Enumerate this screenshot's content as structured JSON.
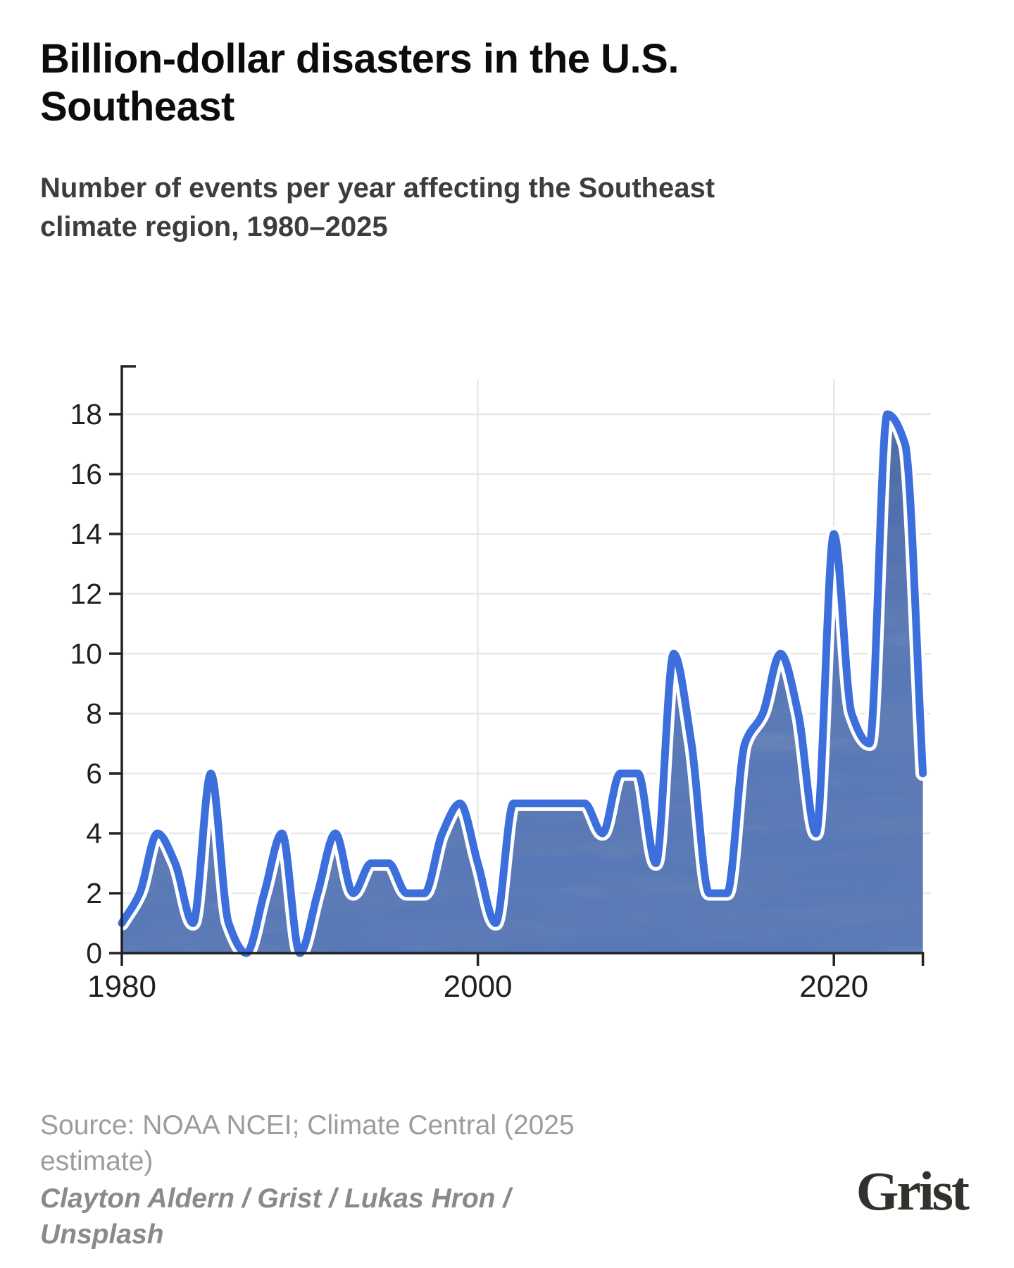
{
  "header": {
    "title": "Billion-dollar disasters in the U.S. Southeast",
    "subtitle": "Number of events per year affecting the Southeast climate region, 1980–2025"
  },
  "footer": {
    "source": "Source: NOAA NCEI; Climate Central (2025 estimate)",
    "credit": "Clayton Aldern / Grist / Lukas Hron / Unsplash",
    "logo_text": "Grist"
  },
  "chart_data": {
    "type": "area",
    "title": "Billion-dollar disasters in the U.S. Southeast",
    "subtitle": "Number of events per year affecting the Southeast climate region, 1980–2025",
    "xlabel": "",
    "ylabel": "",
    "x": [
      1980,
      1981,
      1982,
      1983,
      1984,
      1985,
      1986,
      1987,
      1988,
      1989,
      1990,
      1991,
      1992,
      1993,
      1994,
      1995,
      1996,
      1997,
      1998,
      1999,
      2000,
      2001,
      2002,
      2003,
      2004,
      2005,
      2006,
      2007,
      2008,
      2009,
      2010,
      2011,
      2012,
      2013,
      2014,
      2015,
      2016,
      2017,
      2018,
      2019,
      2020,
      2021,
      2022,
      2023,
      2024,
      2025
    ],
    "values": [
      1,
      2,
      4,
      3,
      1,
      6,
      1,
      0,
      2,
      4,
      0,
      2,
      4,
      2,
      3,
      3,
      2,
      2,
      4,
      5,
      3,
      1,
      5,
      5,
      5,
      5,
      5,
      4,
      6,
      6,
      3,
      10,
      7,
      2,
      2,
      7,
      8,
      10,
      8,
      4,
      14,
      8,
      7,
      18,
      17,
      6
    ],
    "ylim": [
      0,
      19.6
    ],
    "xlim": [
      1980,
      2025.6
    ],
    "y_ticks": [
      0,
      2,
      4,
      6,
      8,
      10,
      12,
      14,
      16,
      18
    ],
    "x_ticks": [
      1980,
      2000,
      2020
    ],
    "grid": true,
    "legend": "none",
    "curve": "monotone",
    "colors": {
      "line": "#3c6fdc",
      "line_halo": "#ffffff",
      "fill_base": "#5878b8",
      "fill_dark": "#49669f",
      "fill_light": "#7b95c9",
      "grid": "#e8e8e8",
      "axis": "#222222",
      "tick_label": "#1f1f1f"
    }
  }
}
